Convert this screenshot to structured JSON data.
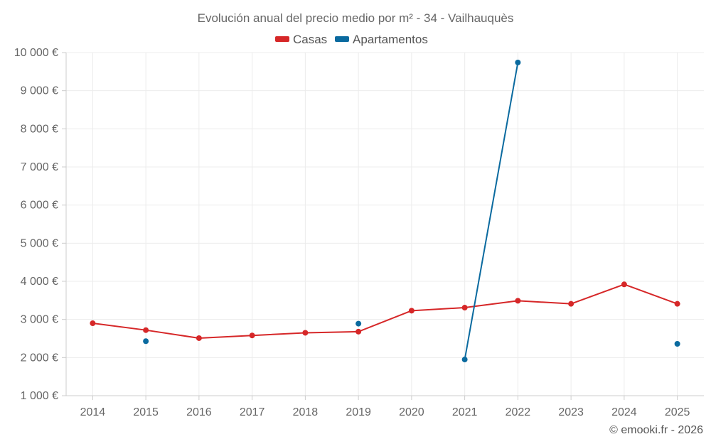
{
  "chart_data": {
    "type": "line",
    "title": "Evolución anual del precio medio por m² - 34 - Vailhauquès",
    "categories": [
      "2014",
      "2015",
      "2016",
      "2017",
      "2018",
      "2019",
      "2020",
      "2021",
      "2022",
      "2023",
      "2024",
      "2025"
    ],
    "series": [
      {
        "name": "Casas",
        "color": "#d62728",
        "values": [
          2900,
          2720,
          2510,
          2580,
          2650,
          2680,
          3230,
          3310,
          3490,
          3410,
          3920,
          3410
        ]
      },
      {
        "name": "Apartamentos",
        "color": "#0a6a9f",
        "values": [
          null,
          2430,
          null,
          null,
          null,
          2890,
          null,
          1950,
          9740,
          null,
          null,
          2360
        ]
      }
    ],
    "ylim": [
      1000,
      10000
    ],
    "yticks": [
      1000,
      2000,
      3000,
      4000,
      5000,
      6000,
      7000,
      8000,
      9000,
      10000
    ],
    "ytick_labels": [
      "1 000 €",
      "2 000 €",
      "3 000 €",
      "4 000 €",
      "5 000 €",
      "6 000 €",
      "7 000 €",
      "8 000 €",
      "9 000 €",
      "10 000 €"
    ],
    "xlabel": "",
    "ylabel": "",
    "grid": true,
    "legend_position": "top-center"
  },
  "credit": "© emooki.fr - 2026"
}
